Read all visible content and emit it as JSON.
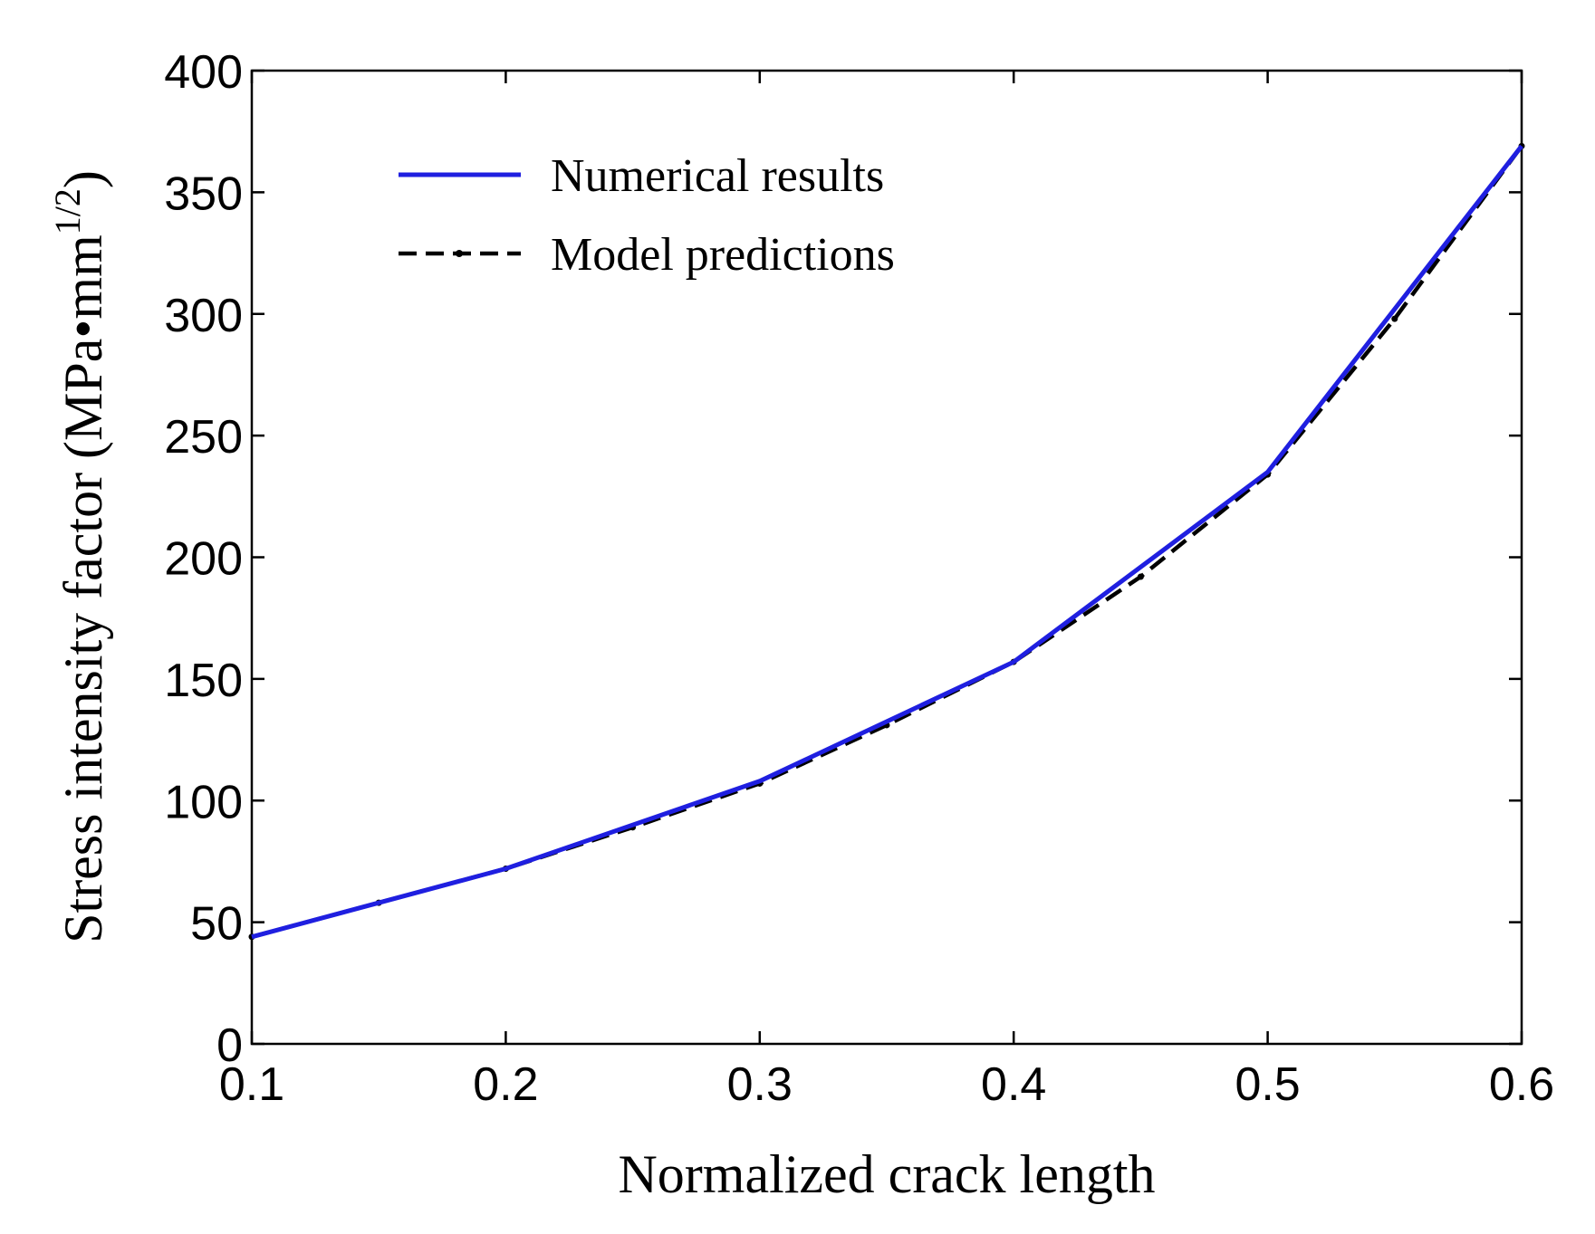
{
  "chart_data": {
    "type": "line",
    "title": "",
    "xlabel": "Normalized crack length",
    "ylabel": "Stress intensity factor (MPa•mm",
    "ylabel_superscript": "1/2",
    "ylabel_close": ")",
    "xlim": [
      0.1,
      0.6
    ],
    "ylim": [
      0,
      400
    ],
    "xticks": [
      "0.1",
      "0.2",
      "0.3",
      "0.4",
      "0.5",
      "0.6"
    ],
    "yticks": [
      "0",
      "50",
      "100",
      "150",
      "200",
      "250",
      "300",
      "350",
      "400"
    ],
    "grid": false,
    "legend_position": "upper-left",
    "series": [
      {
        "name": "Numerical results",
        "color": "#1f1fe0",
        "style": "solid",
        "x": [
          0.1,
          0.2,
          0.3,
          0.4,
          0.5,
          0.6
        ],
        "y": [
          44,
          72,
          108,
          157,
          235,
          369
        ]
      },
      {
        "name": "Model predictions",
        "color": "#000000",
        "style": "dashed",
        "x": [
          0.1,
          0.15,
          0.2,
          0.25,
          0.3,
          0.35,
          0.4,
          0.45,
          0.5,
          0.55,
          0.6
        ],
        "y": [
          44,
          58,
          72,
          89,
          107,
          131,
          157,
          192,
          234,
          298,
          369
        ]
      }
    ]
  }
}
